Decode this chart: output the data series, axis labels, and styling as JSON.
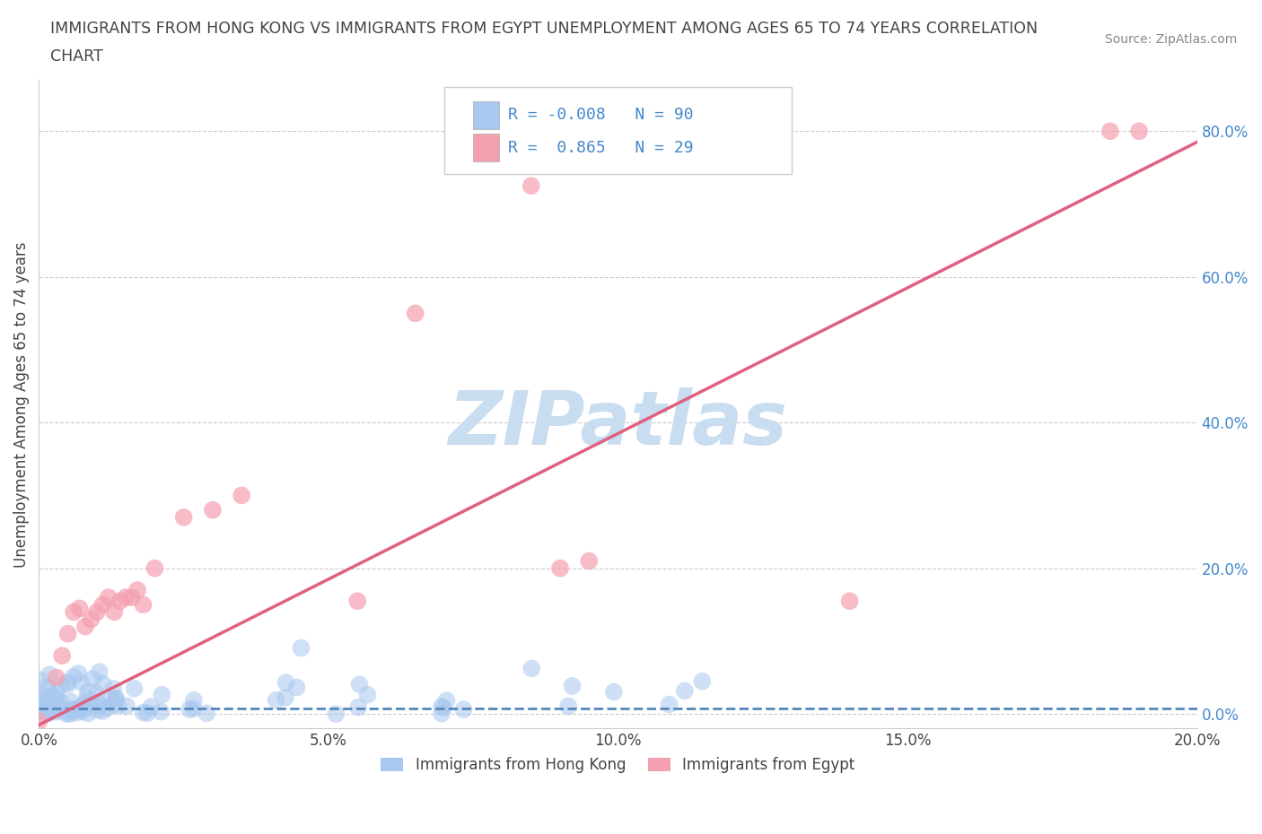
{
  "title_line1": "IMMIGRANTS FROM HONG KONG VS IMMIGRANTS FROM EGYPT UNEMPLOYMENT AMONG AGES 65 TO 74 YEARS CORRELATION",
  "title_line2": "CHART",
  "source_text": "Source: ZipAtlas.com",
  "ylabel": "Unemployment Among Ages 65 to 74 years",
  "xlim": [
    0.0,
    0.2
  ],
  "ylim": [
    -0.02,
    0.87
  ],
  "xtick_labels": [
    "0.0%",
    "5.0%",
    "10.0%",
    "15.0%",
    "20.0%"
  ],
  "xtick_vals": [
    0.0,
    0.05,
    0.1,
    0.15,
    0.2
  ],
  "ytick_labels": [
    "0.0%",
    "20.0%",
    "40.0%",
    "60.0%",
    "80.0%"
  ],
  "ytick_vals": [
    0.0,
    0.2,
    0.4,
    0.6,
    0.8
  ],
  "hk_color": "#a8c8f0",
  "egypt_color": "#f4a0b0",
  "hk_line_color": "#5588bb",
  "egypt_line_color": "#e06080",
  "hk_R": -0.008,
  "hk_N": 90,
  "egypt_R": 0.865,
  "egypt_N": 29,
  "watermark": "ZIPatlas",
  "watermark_color": "#c8ddf0",
  "legend_label_hk": "Immigrants from Hong Kong",
  "legend_label_egypt": "Immigrants from Egypt",
  "background_color": "#ffffff",
  "grid_color": "#cccccc",
  "ytick_color": "#4488cc",
  "xtick_color": "#444444",
  "egypt_line_x0": 0.0,
  "egypt_line_y0": -0.015,
  "egypt_line_x1": 0.2,
  "egypt_line_y1": 0.785,
  "hk_line_y": 0.008
}
